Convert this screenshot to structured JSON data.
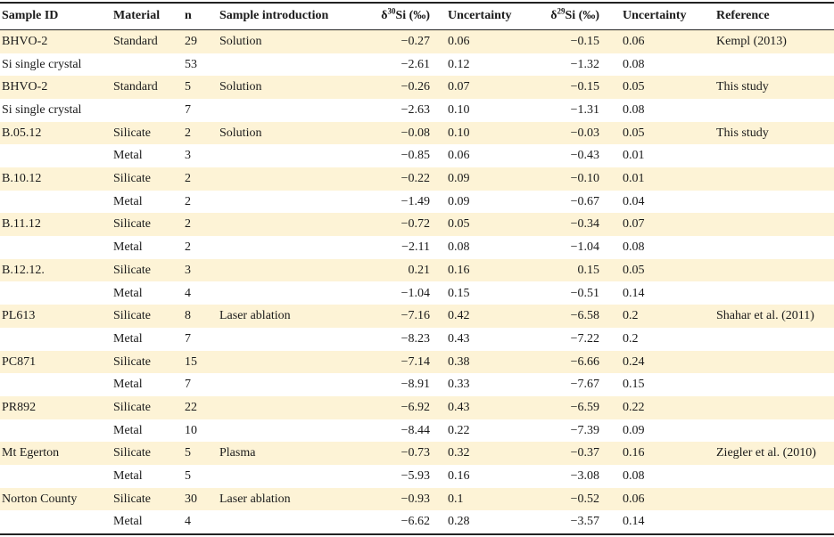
{
  "table": {
    "headers": [
      "Sample ID",
      "Material",
      "n",
      "Sample introduction",
      {
        "pre": "δ",
        "sup": "30",
        "post": "Si (‰)"
      },
      "Uncertainty",
      {
        "pre": "δ",
        "sup": "29",
        "post": "Si (‰)"
      },
      "Uncertainty",
      "Reference"
    ],
    "rows": [
      [
        "BHVO-2",
        "Standard",
        "29",
        "Solution",
        "−0.27",
        "0.06",
        "−0.15",
        "0.06",
        "Kempl (2013)"
      ],
      [
        "Si single crystal",
        null,
        "53",
        null,
        "−2.61",
        "0.12",
        "−1.32",
        "0.08",
        null
      ],
      [
        "BHVO-2",
        "Standard",
        "5",
        "Solution",
        "−0.26",
        "0.07",
        "−0.15",
        "0.05",
        "This study"
      ],
      [
        "Si single crystal",
        null,
        "7",
        null,
        "−2.63",
        "0.10",
        "−1.31",
        "0.08",
        null
      ],
      [
        "B.05.12",
        "Silicate",
        "2",
        "Solution",
        "−0.08",
        "0.10",
        "−0.03",
        "0.05",
        "This study"
      ],
      [
        null,
        "Metal",
        "3",
        null,
        "−0.85",
        "0.06",
        "−0.43",
        "0.01",
        null
      ],
      [
        "B.10.12",
        "Silicate",
        "2",
        null,
        "−0.22",
        "0.09",
        "−0.10",
        "0.01",
        null
      ],
      [
        null,
        "Metal",
        "2",
        null,
        "−1.49",
        "0.09",
        "−0.67",
        "0.04",
        null
      ],
      [
        "B.11.12",
        "Silicate",
        "2",
        null,
        "−0.72",
        "0.05",
        "−0.34",
        "0.07",
        null
      ],
      [
        null,
        "Metal",
        "2",
        null,
        "−2.11",
        "0.08",
        "−1.04",
        "0.08",
        null
      ],
      [
        "B.12.12.",
        "Silicate",
        "3",
        null,
        "0.21",
        "0.16",
        "0.15",
        "0.05",
        null
      ],
      [
        null,
        "Metal",
        "4",
        null,
        "−1.04",
        "0.15",
        "−0.51",
        "0.14",
        null
      ],
      [
        "PL613",
        "Silicate",
        "8",
        "Laser ablation",
        "−7.16",
        "0.42",
        "−6.58",
        "0.2",
        "Shahar et al. (2011)"
      ],
      [
        null,
        "Metal",
        "7",
        null,
        "−8.23",
        "0.43",
        "−7.22",
        "0.2",
        null
      ],
      [
        "PC871",
        "Silicate",
        "15",
        null,
        "−7.14",
        "0.38",
        "−6.66",
        "0.24",
        null
      ],
      [
        null,
        "Metal",
        "7",
        null,
        "−8.91",
        "0.33",
        "−7.67",
        "0.15",
        null
      ],
      [
        "PR892",
        "Silicate",
        "22",
        null,
        "−6.92",
        "0.43",
        "−6.59",
        "0.22",
        null
      ],
      [
        null,
        "Metal",
        "10",
        null,
        "−8.44",
        "0.22",
        "−7.39",
        "0.09",
        null
      ],
      [
        "Mt Egerton",
        "Silicate",
        "5",
        "Plasma",
        "−0.73",
        "0.32",
        "−0.37",
        "0.16",
        "Ziegler et al. (2010)"
      ],
      [
        null,
        "Metal",
        "5",
        null,
        "−5.93",
        "0.16",
        "−3.08",
        "0.08",
        null
      ],
      [
        "Norton County",
        "Silicate",
        "30",
        "Laser ablation",
        "−0.93",
        "0.1",
        "−0.52",
        "0.06",
        null
      ],
      [
        null,
        "Metal",
        "4",
        null,
        "−6.62",
        "0.28",
        "−3.57",
        "0.14",
        null
      ]
    ]
  }
}
